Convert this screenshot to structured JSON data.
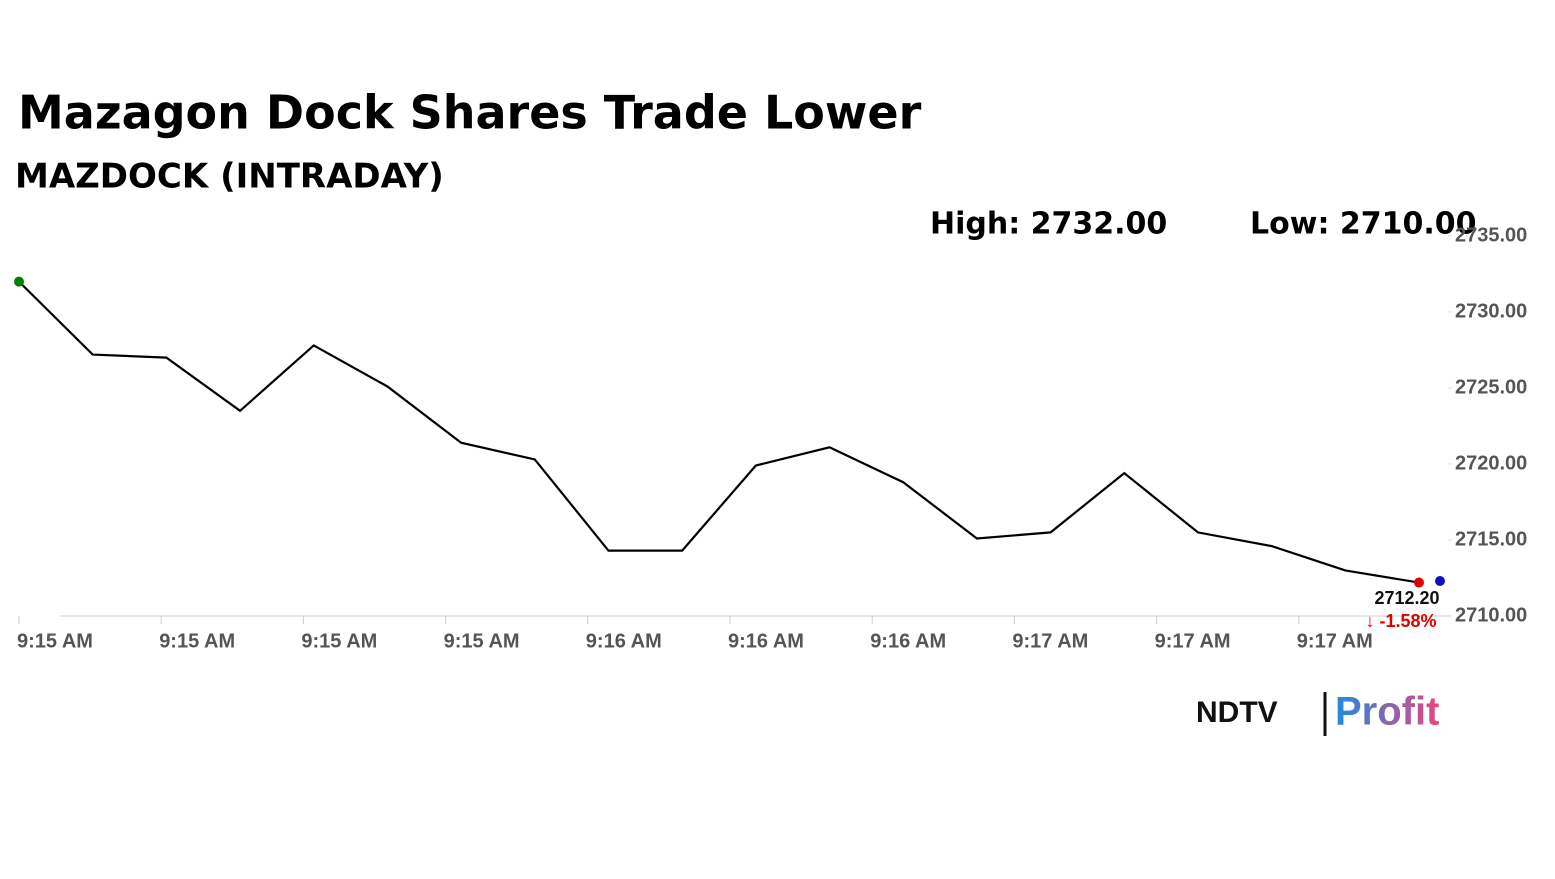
{
  "chart_data": {
    "type": "line",
    "title": "Mazagon Dock Shares Trade Lower",
    "subtitle": "MAZDOCK (INTRADAY)",
    "high": "High: 2732.00",
    "low": "Low: 2710.00",
    "values": [
      2732.0,
      2727.2,
      2727.0,
      2723.5,
      2727.8,
      2725.1,
      2721.4,
      2720.3,
      2714.3,
      2714.3,
      2719.9,
      2721.1,
      2718.8,
      2715.1,
      2715.5,
      2719.4,
      2715.5,
      2714.6,
      2713.0,
      2712.2
    ],
    "last_value_label": "2712.20",
    "change_label": "↓ -1.58%",
    "color": "#000000",
    "start_color": "#008000",
    "end_color": "#e00000",
    "x_labels": [
      "9:15 AM",
      "9:15 AM",
      "9:15 AM",
      "9:15 AM",
      "9:16 AM",
      "9:16 AM",
      "9:16 AM",
      "9:17 AM",
      "9:17 AM",
      "9:17 AM"
    ],
    "ylim": [
      2710,
      2735
    ],
    "yticks": [
      {
        "value": 2735,
        "label": "2735.00"
      },
      {
        "value": 2730,
        "label": "2730.00"
      },
      {
        "value": 2725,
        "label": "2725.00"
      },
      {
        "value": 2720,
        "label": "2720.00"
      },
      {
        "value": 2715,
        "label": "2715.00"
      },
      {
        "value": 2710,
        "label": "2710.00"
      }
    ],
    "logo": {
      "brand": "NDTV",
      "product": "Profit"
    }
  }
}
